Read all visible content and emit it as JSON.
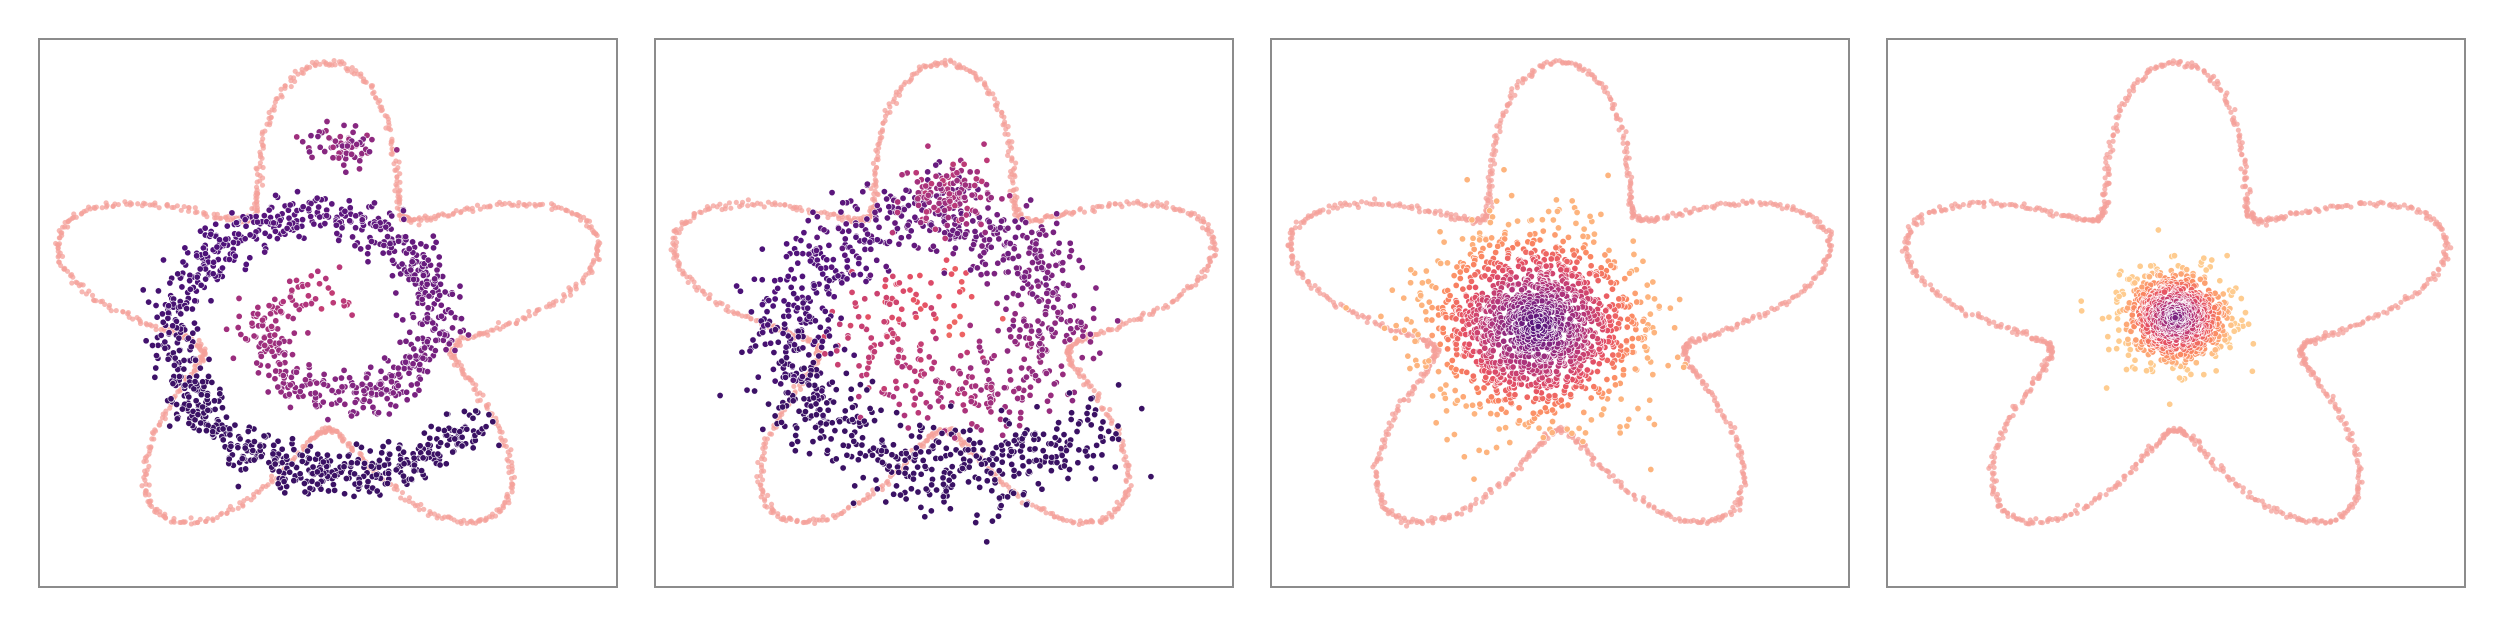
{
  "chart_data": [
    {
      "type": "scatter",
      "title": "",
      "xlabel": "",
      "ylabel": "",
      "grid": false,
      "legend": "none",
      "xlim": [
        -3.0,
        3.0
      ],
      "ylim": [
        -3.2,
        3.2
      ],
      "boundary": {
        "shape": "five-lobed star",
        "color": "#f4a09a",
        "base_radius": 2.2,
        "lobe_amplitude": 0.8,
        "lobes": 5
      },
      "points": {
        "pattern": "spiral",
        "count": 1300,
        "spread": 0.14,
        "colormap": "magma",
        "color_range": [
          0.2,
          0.55
        ],
        "blob": {
          "center": [
            0.2,
            2.0
          ],
          "sd": [
            0.22,
            0.12
          ],
          "count": 70
        }
      }
    },
    {
      "type": "scatter",
      "title": "",
      "xlabel": "",
      "ylabel": "",
      "grid": false,
      "legend": "none",
      "xlim": [
        -3.0,
        3.0
      ],
      "ylim": [
        -3.2,
        3.2
      ],
      "boundary": {
        "shape": "five-lobed star",
        "color": "#f4a09a",
        "base_radius": 2.2,
        "lobe_amplitude": 0.8,
        "lobes": 5
      },
      "points": {
        "pattern": "spiral",
        "count": 1300,
        "spread": 0.26,
        "colormap": "magma",
        "color_range": [
          0.2,
          0.7
        ],
        "blob": {
          "center": [
            0.05,
            1.45
          ],
          "sd": [
            0.25,
            0.22
          ],
          "count": 120
        }
      }
    },
    {
      "type": "scatter",
      "title": "",
      "xlabel": "",
      "ylabel": "",
      "grid": false,
      "legend": "none",
      "xlim": [
        -3.0,
        3.0
      ],
      "ylim": [
        -3.2,
        3.2
      ],
      "boundary": {
        "shape": "five-lobed star",
        "color": "#f4a09a",
        "base_radius": 2.2,
        "lobe_amplitude": 0.8,
        "lobes": 5
      },
      "points": {
        "pattern": "gaussian",
        "count": 1500,
        "center": [
          -0.25,
          -0.15
        ],
        "sd": 0.55,
        "colormap": "magma",
        "color_range": [
          0.25,
          0.85
        ]
      }
    },
    {
      "type": "scatter",
      "title": "",
      "xlabel": "",
      "ylabel": "",
      "grid": false,
      "legend": "none",
      "xlim": [
        -3.0,
        3.0
      ],
      "ylim": [
        -3.2,
        3.2
      ],
      "boundary": {
        "shape": "five-lobed star",
        "color": "#f4a09a",
        "base_radius": 2.2,
        "lobe_amplitude": 0.8,
        "lobes": 5
      },
      "points": {
        "pattern": "gaussian",
        "count": 900,
        "center": [
          0.0,
          -0.05
        ],
        "sd": 0.28,
        "colormap": "magma",
        "color_range": [
          0.35,
          0.9
        ]
      }
    }
  ]
}
